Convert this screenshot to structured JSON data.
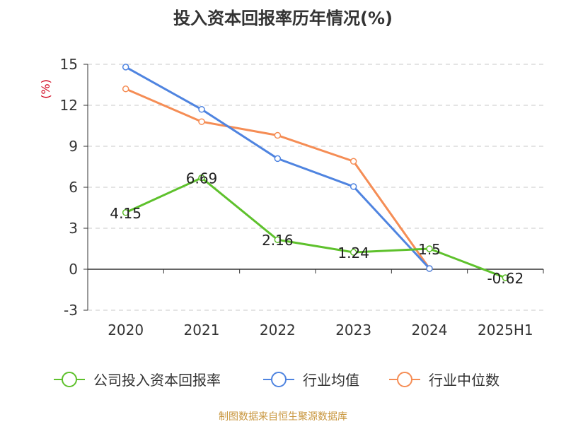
{
  "chart_data": {
    "type": "line",
    "title": "投入资本回报率历年情况(%)",
    "ylabel": "(%)",
    "categories": [
      "2020",
      "2021",
      "2022",
      "2023",
      "2024",
      "2025H1"
    ],
    "yticks": [
      15,
      12,
      9,
      6,
      3,
      0,
      -3
    ],
    "ylim": [
      -3,
      15
    ],
    "grid": true,
    "legend_position": "bottom",
    "series": [
      {
        "name": "公司投入资本回报率",
        "color": "#5ec12c",
        "values": [
          4.15,
          6.69,
          2.16,
          1.24,
          1.5,
          -0.62
        ],
        "labels": [
          "4.15",
          "6.69",
          "2.16",
          "1.24",
          "1.5",
          "-0.62"
        ]
      },
      {
        "name": "行业均值",
        "color": "#4f84e0",
        "values": [
          14.8,
          11.7,
          8.1,
          6.05,
          0.05,
          null
        ]
      },
      {
        "name": "行业中位数",
        "color": "#f58d55",
        "values": [
          13.2,
          10.8,
          9.8,
          7.9,
          0.05,
          null
        ]
      }
    ]
  },
  "source": "制图数据来自恒生聚源数据库"
}
